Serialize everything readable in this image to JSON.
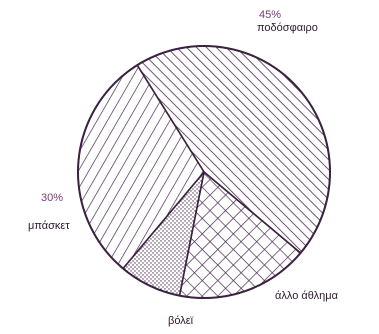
{
  "chart_data": {
    "type": "pie",
    "title": "",
    "slices": [
      {
        "label": "ποδόσφαιρο",
        "value": 45,
        "value_label": "45%",
        "pattern": "diagonal-dense"
      },
      {
        "label": "άλλο άθλημα",
        "value": 17,
        "value_label": "",
        "pattern": "crosshatch"
      },
      {
        "label": "βόλεϊ",
        "value": 8,
        "value_label": "",
        "pattern": "dots"
      },
      {
        "label": "μπάσκετ",
        "value": 30,
        "value_label": "30%",
        "pattern": "diagonal-sparse"
      }
    ],
    "colors": {
      "stroke": "#3a2240",
      "hatch": "#4a2c52",
      "label_pct": "#7a3a78",
      "label_text": "#2b1a2a"
    },
    "legend": "none"
  }
}
